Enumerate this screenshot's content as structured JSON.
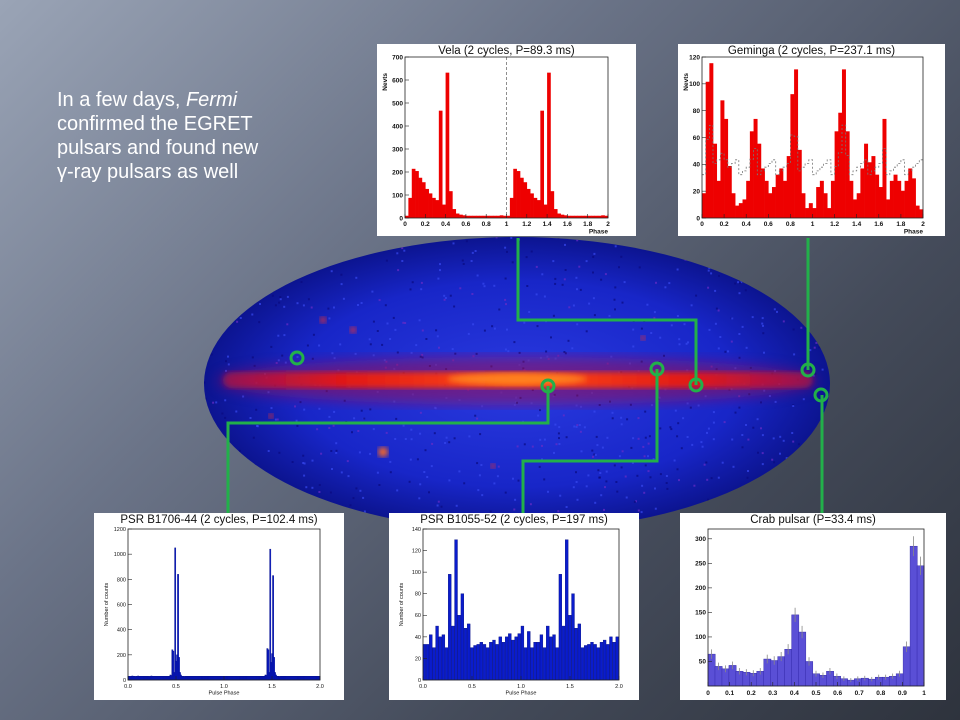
{
  "slide": {
    "text_lines": [
      "In a few days, ",
      "Fermi",
      "confirmed  the EGRET",
      "pulsars and found new",
      "γ",
      "-ray pulsars as well"
    ]
  },
  "colors": {
    "red_hist": "#ee0000",
    "blue_hist": "#0a1ccc",
    "crab_hist": "#5a4fd6",
    "connector": "#22b04a"
  },
  "chart_data": [
    {
      "id": "vela",
      "type": "bar",
      "title": "Vela (2 cycles, P=89.3 ms)",
      "xlabel": "Phase",
      "ylabel": "Nevts",
      "xlim": [
        0,
        2
      ],
      "ylim": [
        0,
        720
      ],
      "xticks": [
        "0",
        "0.2",
        "0.4",
        "0.6",
        "0.8",
        "1",
        "1.2",
        "1.4",
        "1.6",
        "1.8",
        "2"
      ],
      "yticks": [
        "0",
        "100",
        "200",
        "300",
        "400",
        "500",
        "600",
        "700"
      ],
      "values": [
        10,
        90,
        220,
        210,
        180,
        160,
        130,
        110,
        90,
        80,
        480,
        60,
        650,
        120,
        40,
        20,
        15,
        12,
        10,
        10,
        10,
        10,
        10,
        10,
        10,
        10,
        10,
        10,
        12,
        10,
        10,
        90,
        220,
        210,
        180,
        160,
        130,
        110,
        90,
        80,
        480,
        60,
        650,
        120,
        40,
        20,
        15,
        12,
        10,
        10,
        10,
        10,
        10,
        10,
        10,
        10,
        10,
        10,
        12,
        10
      ]
    },
    {
      "id": "geminga",
      "type": "bar",
      "title": "Geminga (2 cycles, P=237.1 ms)",
      "xlabel": "Phase",
      "ylabel": "Nevts",
      "xlim": [
        0,
        2
      ],
      "ylim": [
        0,
        130
      ],
      "xticks": [
        "0",
        "0.2",
        "0.4",
        "0.6",
        "0.8",
        "1",
        "1.2",
        "1.4",
        "1.6",
        "1.8",
        "2"
      ],
      "yticks": [
        "0",
        "20",
        "40",
        "60",
        "80",
        "100",
        "120"
      ],
      "values": [
        20,
        110,
        125,
        60,
        30,
        95,
        80,
        42,
        20,
        10,
        12,
        15,
        30,
        70,
        80,
        60,
        40,
        30,
        20,
        25,
        35,
        40,
        30,
        50,
        100,
        120,
        55,
        20,
        8,
        12,
        8,
        25,
        30,
        20,
        8,
        30,
        70,
        85,
        120,
        70,
        30,
        15,
        20,
        40,
        60,
        45,
        50,
        35,
        25,
        80,
        15,
        30,
        35,
        30,
        22,
        30,
        40,
        32,
        10,
        7
      ]
    },
    {
      "id": "psr_b1706",
      "type": "bar",
      "title": "PSR B1706-44 (2 cycles, P=102.4 ms)",
      "xlabel": "Pulse Phase",
      "ylabel": "Number of counts",
      "xlim": [
        0,
        2
      ],
      "ylim": [
        0,
        1200
      ],
      "xticks": [
        "0.0",
        "0.5",
        "1.0",
        "1.5",
        "2.0"
      ],
      "yticks": [
        "0",
        "200",
        "400",
        "600",
        "800",
        "1000",
        "1200"
      ],
      "values": [
        30,
        30,
        28,
        30,
        32,
        30,
        30,
        28,
        30,
        30,
        32,
        30,
        30,
        30,
        30,
        30,
        30,
        30,
        30,
        30,
        30,
        30,
        28,
        30,
        32,
        30,
        30,
        30,
        30,
        30,
        30,
        30,
        30,
        30,
        30,
        30,
        30,
        30,
        30,
        30,
        30,
        30,
        30,
        30,
        40,
        35,
        240,
        230,
        60,
        1050,
        150,
        200,
        840,
        180,
        60,
        40,
        30,
        30,
        30,
        28,
        30,
        30,
        30,
        30,
        30,
        30,
        30,
        30,
        30,
        30,
        30,
        30,
        30,
        30,
        30,
        30,
        30,
        30,
        30,
        30,
        30,
        30,
        30,
        30,
        30,
        30,
        30,
        30,
        30,
        30,
        30,
        30,
        30,
        30,
        30,
        30,
        30,
        30,
        30,
        30,
        30,
        30,
        30,
        30,
        30,
        30,
        30,
        30,
        30,
        30,
        30,
        30,
        30,
        30,
        30,
        30,
        30,
        30,
        30,
        30,
        30,
        30,
        30,
        30,
        30,
        30,
        30,
        30,
        30,
        30,
        30,
        30,
        30,
        30,
        30,
        30,
        30,
        30,
        30,
        30,
        30,
        30,
        30,
        30,
        40,
        35,
        250,
        240,
        60,
        1040,
        140,
        210,
        830,
        180,
        60,
        40,
        30,
        30,
        30,
        28,
        30,
        30,
        30,
        30,
        30,
        30,
        30,
        30,
        30,
        30,
        30,
        30,
        30,
        30,
        30,
        30,
        30,
        30,
        30,
        30,
        30,
        30,
        30,
        30,
        30,
        30,
        30,
        30,
        30,
        30,
        30,
        30,
        30,
        30,
        30,
        30,
        30,
        30,
        30,
        30,
        30,
        30
      ]
    },
    {
      "id": "psr_b1055",
      "type": "bar",
      "title": "PSR B1055-52 (2 cycles, P=197 ms)",
      "xlabel": "Pulse Phase",
      "ylabel": "Number of counts",
      "xlim": [
        0,
        2
      ],
      "ylim": [
        0,
        140
      ],
      "xticks": [
        "0.0",
        "0.5",
        "1.0",
        "1.5",
        "2.0"
      ],
      "yticks": [
        "0",
        "20",
        "40",
        "60",
        "80",
        "100",
        "120",
        "140"
      ],
      "values": [
        33,
        33,
        42,
        30,
        50,
        40,
        42,
        30,
        98,
        50,
        130,
        60,
        80,
        48,
        52,
        30,
        32,
        33,
        35,
        33,
        30,
        35,
        37,
        33,
        40,
        35,
        40,
        43,
        37,
        40,
        43,
        50,
        30,
        45,
        30,
        35,
        35,
        42,
        30,
        50,
        40,
        42,
        30,
        98,
        50,
        130,
        60,
        80,
        48,
        52,
        30,
        32,
        33,
        35,
        33,
        30,
        35,
        37,
        33,
        40,
        35,
        40
      ]
    },
    {
      "id": "crab",
      "type": "bar",
      "title": "Crab pulsar (P=33.4 ms)",
      "xlabel": "",
      "ylabel": "",
      "xlim": [
        0,
        1
      ],
      "ylim": [
        0,
        320
      ],
      "xticks": [
        "0",
        "0.1",
        "0.2",
        "0.3",
        "0.4",
        "0.5",
        "0.6",
        "0.7",
        "0.8",
        "0.9",
        "1"
      ],
      "yticks": [
        "50",
        "100",
        "150",
        "200",
        "250",
        "300"
      ],
      "values": [
        65,
        40,
        35,
        42,
        30,
        28,
        26,
        30,
        55,
        52,
        60,
        75,
        145,
        110,
        50,
        25,
        22,
        30,
        20,
        15,
        12,
        15,
        16,
        14,
        18,
        18,
        20,
        25,
        80,
        285,
        245
      ]
    }
  ]
}
